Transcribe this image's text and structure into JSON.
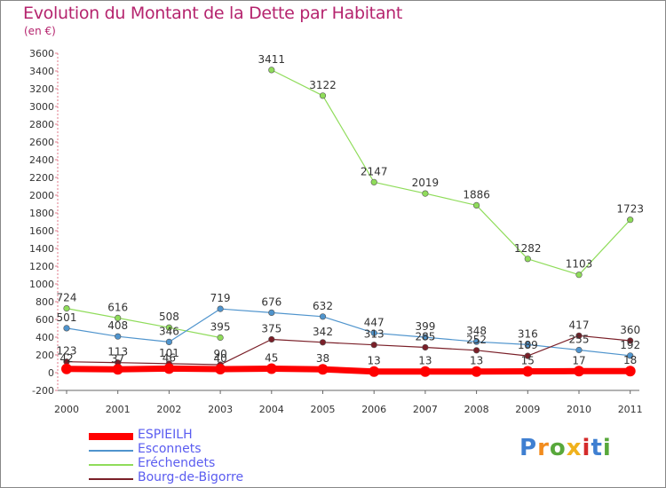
{
  "title": "Evolution du Montant de la Dette par Habitant",
  "subtitle": "(en €)",
  "logo_text": "Proxiti",
  "chart_data": {
    "type": "line",
    "title": "Evolution du Montant de la Dette par Habitant",
    "subtitle": "(en €)",
    "x": [
      "2000",
      "2001",
      "2002",
      "2003",
      "2004",
      "2005",
      "2006",
      "2007",
      "2008",
      "2009",
      "2010",
      "2011"
    ],
    "ylim": [
      -200,
      3600
    ],
    "yticks": [
      -200,
      0,
      200,
      400,
      600,
      800,
      1000,
      1200,
      1400,
      1600,
      1800,
      2000,
      2200,
      2400,
      2600,
      2800,
      3000,
      3200,
      3400,
      3600
    ],
    "grid": false,
    "legend_position": "bottom-left",
    "series": [
      {
        "name": "ESPIEILH",
        "color": "#ff0000",
        "values": [
          42,
          37,
          46,
          40,
          45,
          38,
          13,
          13,
          13,
          15,
          17,
          18
        ],
        "labels": [
          "42",
          "37",
          "46",
          "40",
          "45",
          "38",
          "13",
          "13",
          "13",
          "15",
          "17",
          "18"
        ],
        "emphasis": true
      },
      {
        "name": "Esconnets",
        "color": "#4f94cd",
        "values": [
          501,
          408,
          346,
          719,
          676,
          632,
          447,
          399,
          348,
          316,
          255,
          192
        ],
        "labels": [
          "501",
          "408",
          "346",
          "719",
          "676",
          "632",
          "447",
          "399",
          "348",
          "316",
          "255",
          "192"
        ]
      },
      {
        "name": "Eréchendets",
        "color": "#8fdc5a",
        "values": [
          724,
          616,
          508,
          395,
          3411,
          3122,
          2147,
          2019,
          1886,
          1282,
          1103,
          1723
        ],
        "labels": [
          "724",
          "616",
          "508",
          "395",
          "3411",
          "3122",
          "2147",
          "2019",
          "1886",
          "1282",
          "1103",
          "1723"
        ],
        "gap_after_index": 3
      },
      {
        "name": "Bourg-de-Bigorre",
        "color": "#7a1f28",
        "values": [
          123,
          113,
          101,
          90,
          375,
          342,
          313,
          285,
          252,
          189,
          417,
          360
        ],
        "labels": [
          "123",
          "113",
          "101",
          "90",
          "375",
          "342",
          "313",
          "285",
          "252",
          "189",
          "417",
          "360"
        ]
      }
    ]
  }
}
